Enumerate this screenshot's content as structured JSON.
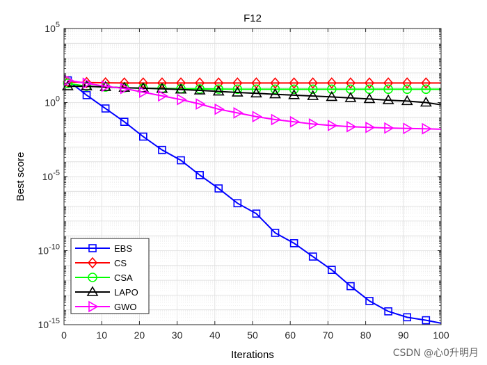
{
  "chart_data": {
    "type": "line",
    "title": "F12",
    "xlabel": "Iterations",
    "ylabel": "Best score",
    "yscale": "log",
    "xlim": [
      0,
      100
    ],
    "ylim_exp": [
      -15,
      5
    ],
    "xticks": [
      0,
      10,
      20,
      30,
      40,
      50,
      60,
      70,
      80,
      90,
      100
    ],
    "yticks_exp": [
      -15,
      -10,
      -5,
      0,
      5
    ],
    "ytick_base": "10",
    "grid": true,
    "legend_position": "bottom-left",
    "series": [
      {
        "name": "EBS",
        "color": "#0000ff",
        "marker": "square",
        "x": [
          1,
          6,
          11,
          16,
          21,
          26,
          31,
          36,
          41,
          46,
          51,
          56,
          61,
          66,
          71,
          76,
          81,
          86,
          91,
          96,
          100
        ],
        "log10_y": [
          1.5,
          0.5,
          -0.4,
          -1.3,
          -2.3,
          -3.2,
          -3.9,
          -4.9,
          -5.8,
          -6.8,
          -7.5,
          -8.8,
          -9.5,
          -10.4,
          -11.3,
          -12.4,
          -13.4,
          -14.1,
          -14.5,
          -14.7,
          -14.9
        ]
      },
      {
        "name": "CS",
        "color": "#ff0000",
        "marker": "diamond",
        "x": [
          1,
          6,
          11,
          16,
          21,
          26,
          31,
          36,
          41,
          46,
          51,
          56,
          61,
          66,
          71,
          76,
          81,
          86,
          91,
          96,
          100
        ],
        "log10_y": [
          1.4,
          1.35,
          1.33,
          1.32,
          1.32,
          1.32,
          1.32,
          1.32,
          1.32,
          1.32,
          1.32,
          1.32,
          1.32,
          1.32,
          1.32,
          1.32,
          1.32,
          1.32,
          1.32,
          1.32,
          1.32
        ]
      },
      {
        "name": "CSA",
        "color": "#00ff00",
        "marker": "circle",
        "x": [
          1,
          6,
          11,
          16,
          21,
          26,
          31,
          36,
          41,
          46,
          51,
          56,
          61,
          66,
          71,
          76,
          81,
          86,
          91,
          96,
          100
        ],
        "log10_y": [
          1.3,
          1.1,
          1.05,
          1.0,
          0.97,
          0.95,
          0.93,
          0.92,
          0.91,
          0.9,
          0.9,
          0.9,
          0.9,
          0.9,
          0.9,
          0.9,
          0.9,
          0.9,
          0.9,
          0.9,
          0.9
        ]
      },
      {
        "name": "LAPO",
        "color": "#000000",
        "marker": "triangle-up",
        "x": [
          1,
          6,
          11,
          16,
          21,
          26,
          31,
          36,
          41,
          46,
          51,
          56,
          61,
          66,
          71,
          76,
          81,
          86,
          91,
          96,
          100
        ],
        "log10_y": [
          1.1,
          1.1,
          1.05,
          1.0,
          0.97,
          0.93,
          0.88,
          0.82,
          0.75,
          0.68,
          0.62,
          0.56,
          0.5,
          0.44,
          0.38,
          0.31,
          0.24,
          0.16,
          0.1,
          0.0,
          -0.15
        ]
      },
      {
        "name": "GWO",
        "color": "#ff00ff",
        "marker": "triangle-right",
        "x": [
          1,
          6,
          11,
          16,
          21,
          26,
          31,
          36,
          41,
          46,
          51,
          56,
          61,
          66,
          71,
          76,
          81,
          86,
          91,
          96,
          100
        ],
        "log10_y": [
          1.5,
          1.3,
          1.1,
          0.95,
          0.7,
          0.45,
          0.2,
          -0.1,
          -0.45,
          -0.7,
          -0.95,
          -1.15,
          -1.3,
          -1.45,
          -1.55,
          -1.63,
          -1.68,
          -1.72,
          -1.75,
          -1.77,
          -1.8
        ]
      }
    ]
  },
  "watermark": "CSDN @心0升明月"
}
